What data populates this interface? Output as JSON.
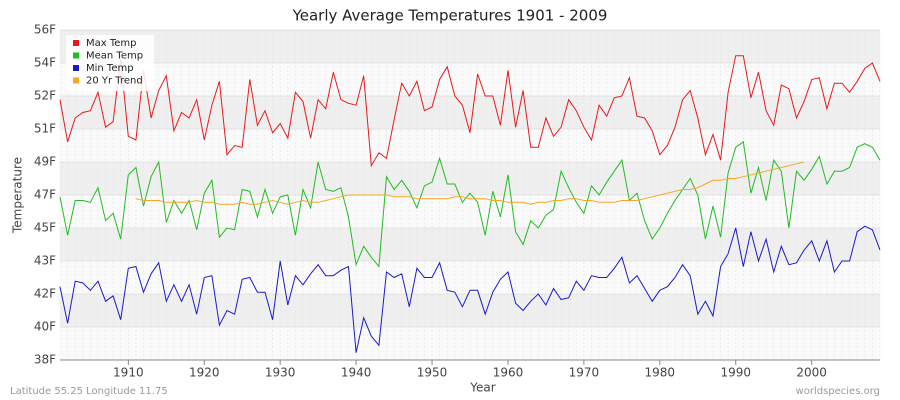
{
  "chart_data": {
    "type": "line",
    "title": "Yearly Average Temperatures 1901 - 2009",
    "xlabel": "Year",
    "ylabel": "Temperature",
    "footer_left": "Latitude 55.25 Longitude 11.75",
    "footer_right": "worldspecies.org",
    "x": [
      1901,
      1902,
      1903,
      1904,
      1905,
      1906,
      1907,
      1908,
      1909,
      1910,
      1911,
      1912,
      1913,
      1914,
      1915,
      1916,
      1917,
      1918,
      1919,
      1920,
      1921,
      1922,
      1923,
      1924,
      1925,
      1926,
      1927,
      1928,
      1929,
      1930,
      1931,
      1932,
      1933,
      1934,
      1935,
      1936,
      1937,
      1938,
      1939,
      1940,
      1941,
      1942,
      1943,
      1944,
      1945,
      1946,
      1947,
      1948,
      1949,
      1950,
      1951,
      1952,
      1953,
      1954,
      1955,
      1956,
      1957,
      1958,
      1959,
      1960,
      1961,
      1962,
      1963,
      1964,
      1965,
      1966,
      1967,
      1968,
      1969,
      1970,
      1971,
      1972,
      1973,
      1974,
      1975,
      1976,
      1977,
      1978,
      1979,
      1980,
      1981,
      1982,
      1983,
      1984,
      1985,
      1986,
      1987,
      1988,
      1989,
      1990,
      1991,
      1992,
      1993,
      1994,
      1995,
      1996,
      1997,
      1998,
      1999,
      2000,
      2001,
      2002,
      2003,
      2004,
      2005,
      2006,
      2007,
      2008,
      2009
    ],
    "xlim": [
      1901,
      2009
    ],
    "xticks": [
      1910,
      1920,
      1930,
      1940,
      1950,
      1960,
      1970,
      1980,
      1990,
      2000
    ],
    "ylim": [
      38,
      56
    ],
    "yticks": [
      {
        "value": 38,
        "label": "38F"
      },
      {
        "value": 39.8,
        "label": "40F"
      },
      {
        "value": 41.6,
        "label": "42F"
      },
      {
        "value": 43.4,
        "label": "43F"
      },
      {
        "value": 45.2,
        "label": "45F"
      },
      {
        "value": 47,
        "label": "47F"
      },
      {
        "value": 48.8,
        "label": "49F"
      },
      {
        "value": 50.6,
        "label": "51F"
      },
      {
        "value": 52.4,
        "label": "52F"
      },
      {
        "value": 54.2,
        "label": "54F"
      },
      {
        "value": 56,
        "label": "56F"
      }
    ],
    "grid": true,
    "legend": "top-left",
    "series": [
      {
        "name": "Max Temp",
        "color": "#e8191c",
        "values": [
          52.2,
          49.9,
          51.2,
          51.5,
          51.6,
          52.6,
          50.7,
          51.0,
          54.4,
          50.2,
          50.0,
          53.8,
          51.2,
          52.7,
          53.5,
          50.5,
          51.5,
          51.2,
          52.2,
          50.0,
          51.9,
          53.2,
          49.2,
          49.7,
          49.6,
          53.3,
          50.8,
          51.6,
          50.4,
          50.9,
          50.1,
          52.6,
          52.1,
          50.1,
          52.2,
          51.7,
          53.7,
          52.2,
          52.0,
          51.9,
          53.5,
          48.6,
          49.3,
          49.0,
          51.1,
          53.1,
          52.4,
          53.2,
          51.6,
          51.8,
          53.3,
          54.0,
          52.4,
          51.9,
          50.4,
          53.6,
          52.4,
          52.4,
          50.8,
          53.8,
          50.7,
          52.7,
          49.6,
          49.6,
          51.2,
          50.2,
          50.7,
          52.2,
          51.6,
          50.7,
          50.0,
          51.9,
          51.3,
          52.3,
          52.4,
          53.4,
          51.3,
          51.2,
          50.5,
          49.2,
          49.7,
          50.7,
          52.2,
          52.7,
          51.2,
          49.2,
          50.3,
          48.9,
          52.6,
          54.6,
          54.6,
          52.3,
          53.7,
          51.6,
          50.8,
          53.0,
          52.8,
          51.2,
          52.1,
          53.3,
          53.4,
          51.7,
          53.1,
          53.1,
          52.6,
          53.2,
          53.9,
          54.2,
          53.2
        ]
      },
      {
        "name": "Mean Temp",
        "color": "#22bb22",
        "values": [
          46.9,
          44.8,
          46.7,
          46.7,
          46.6,
          47.4,
          45.6,
          46.0,
          44.6,
          48.1,
          48.5,
          46.4,
          48.0,
          48.8,
          45.5,
          46.7,
          46.0,
          46.7,
          45.1,
          47.1,
          47.8,
          44.7,
          45.2,
          45.1,
          47.3,
          47.2,
          45.8,
          47.3,
          46.0,
          46.9,
          47.0,
          44.8,
          47.3,
          46.3,
          48.8,
          47.3,
          47.2,
          47.4,
          45.8,
          43.2,
          44.2,
          43.6,
          43.1,
          48.0,
          47.3,
          47.8,
          47.2,
          46.3,
          47.5,
          47.7,
          49.0,
          47.6,
          47.6,
          46.6,
          47.1,
          46.6,
          44.8,
          47.2,
          45.8,
          48.1,
          45.0,
          44.3,
          45.6,
          45.2,
          45.9,
          46.2,
          48.3,
          47.4,
          46.6,
          46.0,
          47.5,
          47.0,
          47.7,
          48.3,
          48.9,
          46.7,
          47.1,
          45.6,
          44.6,
          45.2,
          46.0,
          46.7,
          47.3,
          47.9,
          47.0,
          44.6,
          46.4,
          44.7,
          48.2,
          49.6,
          49.9,
          47.1,
          48.5,
          46.7,
          48.9,
          48.3,
          45.2,
          48.3,
          47.8,
          48.4,
          49.1,
          47.6,
          48.3,
          48.3,
          48.5,
          49.6,
          49.8,
          49.6,
          48.9
        ]
      },
      {
        "name": "Min Temp",
        "color": "#1a1acc",
        "values": [
          42.0,
          40.0,
          42.3,
          42.2,
          41.8,
          42.3,
          41.2,
          41.5,
          40.2,
          43.0,
          43.1,
          41.7,
          42.7,
          43.3,
          41.2,
          42.1,
          41.2,
          42.1,
          40.5,
          42.5,
          42.6,
          39.9,
          40.7,
          40.5,
          42.4,
          42.5,
          41.7,
          41.7,
          40.2,
          43.4,
          41.0,
          42.6,
          42.1,
          42.7,
          43.2,
          42.6,
          42.6,
          42.9,
          43.1,
          38.4,
          40.3,
          39.3,
          38.8,
          42.8,
          42.5,
          42.7,
          40.9,
          43.0,
          42.5,
          42.5,
          43.3,
          41.8,
          41.7,
          40.9,
          41.8,
          41.8,
          40.5,
          41.7,
          42.4,
          42.8,
          41.1,
          40.7,
          41.2,
          41.6,
          41.0,
          41.9,
          41.3,
          41.4,
          42.3,
          41.8,
          42.6,
          42.5,
          42.5,
          43.0,
          43.6,
          42.2,
          42.6,
          41.9,
          41.2,
          41.8,
          42.0,
          42.5,
          43.2,
          42.6,
          40.5,
          41.2,
          40.4,
          43.1,
          43.8,
          45.2,
          43.1,
          45.0,
          43.4,
          44.6,
          42.8,
          44.2,
          43.2,
          43.3,
          44.0,
          44.5,
          43.4,
          44.5,
          42.8,
          43.4,
          43.4,
          45.0,
          45.3,
          45.1,
          44.0
        ]
      },
      {
        "name": "20 Yr Trend",
        "color": "#f5a623",
        "values": [
          null,
          null,
          null,
          null,
          null,
          null,
          null,
          null,
          null,
          null,
          46.8,
          46.7,
          46.7,
          46.7,
          46.6,
          46.6,
          46.6,
          46.6,
          46.7,
          46.6,
          46.6,
          46.5,
          46.5,
          46.5,
          46.6,
          46.5,
          46.5,
          46.6,
          46.7,
          46.6,
          46.5,
          46.6,
          46.7,
          46.6,
          46.6,
          46.7,
          46.8,
          46.9,
          47.0,
          47.0,
          47.0,
          47.0,
          47.0,
          47.0,
          46.9,
          46.9,
          46.9,
          46.8,
          46.8,
          46.8,
          46.8,
          46.8,
          46.9,
          46.9,
          46.8,
          46.8,
          46.8,
          46.7,
          46.7,
          46.6,
          46.6,
          46.6,
          46.5,
          46.6,
          46.6,
          46.7,
          46.7,
          46.8,
          46.8,
          46.7,
          46.7,
          46.6,
          46.6,
          46.6,
          46.7,
          46.7,
          46.7,
          46.8,
          46.9,
          47.0,
          47.1,
          47.2,
          47.3,
          47.3,
          47.4,
          47.6,
          47.8,
          47.8,
          47.9,
          47.9,
          48.0,
          48.1,
          48.2,
          48.3,
          48.4,
          48.5,
          48.6,
          48.7,
          48.8,
          null,
          null,
          null,
          null,
          null,
          null,
          null,
          null,
          null,
          null
        ]
      }
    ]
  }
}
